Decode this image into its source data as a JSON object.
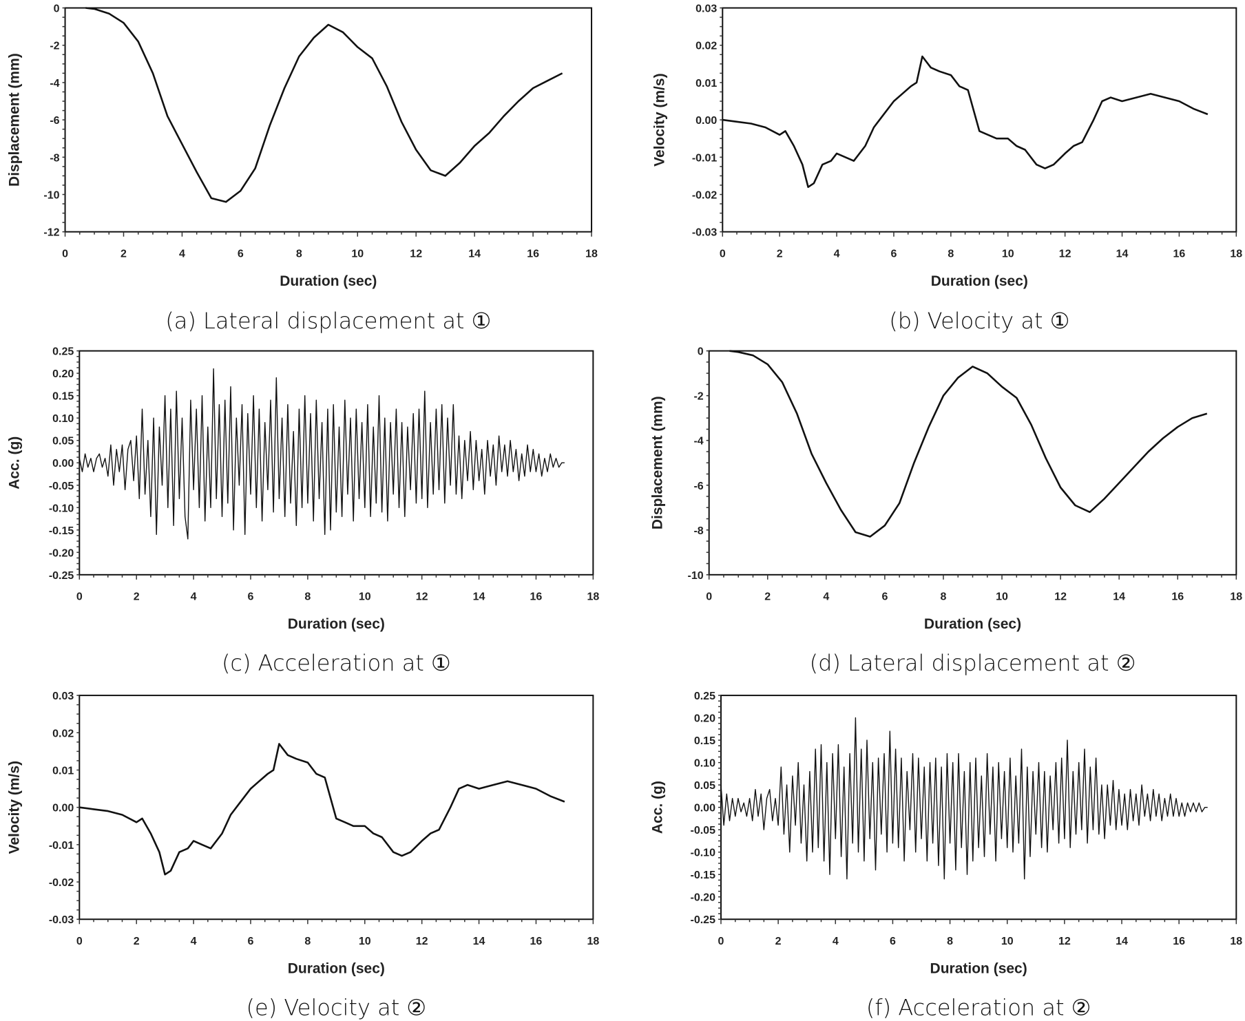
{
  "chart_data": [
    {
      "id": "a",
      "type": "line",
      "caption": "(a) Lateral displacement at ①",
      "xlabel": "Duration (sec)",
      "ylabel": "Displacement (mm)",
      "xlim": [
        0,
        18
      ],
      "ylim": [
        -12,
        0
      ],
      "xticks": [
        0,
        2,
        4,
        6,
        8,
        10,
        12,
        14,
        16,
        18
      ],
      "yticks": [
        0,
        -2,
        -4,
        -6,
        -8,
        -10,
        -12
      ],
      "ydecimals": 0,
      "grid": false,
      "legend": "none",
      "x": [
        0.7,
        1,
        1.5,
        2,
        2.5,
        3,
        3.5,
        4,
        4.5,
        5,
        5.5,
        6,
        6.5,
        7,
        7.5,
        8,
        8.5,
        9,
        9.5,
        10,
        10.5,
        11,
        11.5,
        12,
        12.5,
        13,
        13.5,
        14,
        14.5,
        15,
        15.5,
        16,
        16.5,
        17
      ],
      "y": [
        0,
        -0.05,
        -0.3,
        -0.8,
        -1.8,
        -3.5,
        -5.8,
        -7.3,
        -8.8,
        -10.2,
        -10.4,
        -9.8,
        -8.6,
        -6.3,
        -4.3,
        -2.6,
        -1.6,
        -0.9,
        -1.3,
        -2.1,
        -2.7,
        -4.2,
        -6.1,
        -7.6,
        -8.7,
        -9.0,
        -8.3,
        -7.4,
        -6.7,
        -5.8,
        -5.0,
        -4.3,
        -3.9,
        -3.5
      ]
    },
    {
      "id": "b",
      "type": "line",
      "caption": "(b) Velocity at ①",
      "xlabel": "Duration (sec)",
      "ylabel": "Velocity (m/s)",
      "xlim": [
        0,
        18
      ],
      "ylim": [
        -0.03,
        0.03
      ],
      "xticks": [
        0,
        2,
        4,
        6,
        8,
        10,
        12,
        14,
        16,
        18
      ],
      "yticks": [
        0.03,
        0.02,
        0.01,
        0.0,
        -0.01,
        -0.02,
        -0.03
      ],
      "ydecimals": 2,
      "grid": false,
      "legend": "none",
      "x": [
        0,
        0.5,
        1,
        1.5,
        2,
        2.2,
        2.5,
        2.8,
        3,
        3.2,
        3.5,
        3.8,
        4,
        4.3,
        4.6,
        5,
        5.3,
        5.6,
        6,
        6.3,
        6.6,
        6.8,
        7,
        7.3,
        7.6,
        8,
        8.3,
        8.6,
        9,
        9.3,
        9.6,
        10,
        10.3,
        10.6,
        11,
        11.3,
        11.6,
        12,
        12.3,
        12.6,
        13,
        13.3,
        13.6,
        14,
        14.5,
        15,
        15.5,
        16,
        16.5,
        17
      ],
      "y": [
        0,
        -0.0005,
        -0.001,
        -0.002,
        -0.004,
        -0.003,
        -0.007,
        -0.012,
        -0.018,
        -0.017,
        -0.012,
        -0.011,
        -0.009,
        -0.01,
        -0.011,
        -0.007,
        -0.002,
        0.001,
        0.005,
        0.007,
        0.009,
        0.01,
        0.017,
        0.014,
        0.013,
        0.012,
        0.009,
        0.008,
        -0.003,
        -0.004,
        -0.005,
        -0.005,
        -0.007,
        -0.008,
        -0.012,
        -0.013,
        -0.012,
        -0.009,
        -0.007,
        -0.006,
        0.0,
        0.005,
        0.006,
        0.005,
        0.006,
        0.007,
        0.006,
        0.005,
        0.003,
        0.0015
      ]
    },
    {
      "id": "c",
      "type": "line",
      "caption": "(c) Acceleration at ①",
      "xlabel": "Duration (sec)",
      "ylabel": "Acc. (g)",
      "xlim": [
        0,
        18
      ],
      "ylim": [
        -0.25,
        0.25
      ],
      "xticks": [
        0,
        2,
        4,
        6,
        8,
        10,
        12,
        14,
        16,
        18
      ],
      "yticks": [
        0.25,
        0.2,
        0.15,
        0.1,
        0.05,
        0.0,
        -0.05,
        -0.1,
        -0.15,
        -0.2,
        -0.25
      ],
      "ydecimals": 2,
      "grid": false,
      "legend": "none",
      "dx": 0.1,
      "y": [
        0.01,
        -0.02,
        0.02,
        -0.01,
        0.01,
        -0.02,
        0.01,
        0.02,
        -0.01,
        0.01,
        -0.03,
        0.04,
        -0.05,
        0.03,
        -0.02,
        0.04,
        -0.06,
        0.03,
        0.05,
        -0.04,
        0.06,
        -0.08,
        0.12,
        -0.07,
        0.05,
        -0.12,
        0.1,
        -0.16,
        0.08,
        -0.05,
        0.15,
        -0.1,
        0.12,
        -0.14,
        0.16,
        -0.08,
        0.1,
        -0.12,
        -0.17,
        0.14,
        -0.06,
        0.12,
        -0.1,
        0.15,
        -0.13,
        0.08,
        -0.1,
        0.21,
        -0.08,
        0.13,
        -0.12,
        0.14,
        -0.09,
        0.17,
        -0.15,
        0.1,
        -0.05,
        0.13,
        -0.16,
        0.11,
        -0.07,
        0.15,
        -0.1,
        0.12,
        -0.13,
        0.09,
        -0.06,
        0.14,
        -0.11,
        0.19,
        -0.08,
        0.1,
        -0.12,
        0.13,
        -0.09,
        0.07,
        -0.14,
        0.12,
        -0.1,
        0.15,
        -0.09,
        0.11,
        -0.13,
        0.14,
        -0.08,
        0.09,
        -0.16,
        0.12,
        -0.15,
        0.13,
        -0.11,
        0.08,
        -0.12,
        0.14,
        -0.07,
        0.1,
        -0.13,
        0.12,
        -0.08,
        0.09,
        -0.1,
        0.13,
        -0.12,
        0.08,
        -0.09,
        0.15,
        -0.11,
        0.1,
        -0.13,
        0.09,
        -0.07,
        0.12,
        -0.1,
        0.09,
        -0.12,
        0.08,
        -0.06,
        0.11,
        -0.09,
        0.12,
        -0.08,
        0.16,
        -0.1,
        0.09,
        -0.07,
        0.12,
        -0.06,
        0.13,
        -0.09,
        0.1,
        -0.05,
        0.13,
        -0.07,
        0.06,
        -0.08,
        0.05,
        -0.04,
        0.07,
        -0.06,
        0.05,
        -0.04,
        0.03,
        -0.07,
        0.05,
        -0.03,
        0.04,
        -0.05,
        0.06,
        -0.02,
        0.04,
        -0.03,
        0.05,
        -0.02,
        0.03,
        -0.04,
        0.02,
        -0.03,
        0.04,
        -0.02,
        0.03,
        -0.02,
        0.02,
        -0.03,
        0.01,
        -0.02,
        0.02,
        -0.01,
        0.01,
        -0.01,
        0.0,
        0.0
      ]
    },
    {
      "id": "d",
      "type": "line",
      "caption": "(d) Lateral displacement at ②",
      "xlabel": "Duration (sec)",
      "ylabel": "Displacement (mm)",
      "xlim": [
        0,
        18
      ],
      "ylim": [
        -10,
        0
      ],
      "xticks": [
        0,
        2,
        4,
        6,
        8,
        10,
        12,
        14,
        16,
        18
      ],
      "yticks": [
        0,
        -2,
        -4,
        -6,
        -8,
        -10
      ],
      "ydecimals": 0,
      "grid": false,
      "legend": "none",
      "x": [
        0.7,
        1,
        1.5,
        2,
        2.5,
        3,
        3.5,
        4,
        4.5,
        5,
        5.5,
        6,
        6.5,
        7,
        7.5,
        8,
        8.5,
        9,
        9.5,
        10,
        10.5,
        11,
        11.5,
        12,
        12.5,
        13,
        13.5,
        14,
        14.5,
        15,
        15.5,
        16,
        16.5,
        17
      ],
      "y": [
        0,
        -0.05,
        -0.2,
        -0.6,
        -1.4,
        -2.8,
        -4.6,
        -5.9,
        -7.1,
        -8.1,
        -8.3,
        -7.8,
        -6.8,
        -5.0,
        -3.4,
        -2.0,
        -1.2,
        -0.7,
        -1.0,
        -1.6,
        -2.1,
        -3.3,
        -4.8,
        -6.1,
        -6.9,
        -7.2,
        -6.6,
        -5.9,
        -5.2,
        -4.5,
        -3.9,
        -3.4,
        -3.0,
        -2.8
      ]
    },
    {
      "id": "e",
      "type": "line",
      "caption": "(e) Velocity at ②",
      "xlabel": "Duration (sec)",
      "ylabel": "Velocity (m/s)",
      "xlim": [
        0,
        18
      ],
      "ylim": [
        -0.03,
        0.03
      ],
      "xticks": [
        0,
        2,
        4,
        6,
        8,
        10,
        12,
        14,
        16,
        18
      ],
      "yticks": [
        0.03,
        0.02,
        0.01,
        0.0,
        -0.01,
        -0.02,
        -0.03
      ],
      "ydecimals": 2,
      "grid": false,
      "legend": "none",
      "x": [
        0,
        0.5,
        1,
        1.5,
        2,
        2.2,
        2.5,
        2.8,
        3,
        3.2,
        3.5,
        3.8,
        4,
        4.3,
        4.6,
        5,
        5.3,
        5.6,
        6,
        6.3,
        6.6,
        6.8,
        7,
        7.3,
        7.6,
        8,
        8.3,
        8.6,
        9,
        9.3,
        9.6,
        10,
        10.3,
        10.6,
        11,
        11.3,
        11.6,
        12,
        12.3,
        12.6,
        13,
        13.3,
        13.6,
        14,
        14.5,
        15,
        15.5,
        16,
        16.5,
        17
      ],
      "y": [
        0,
        -0.0005,
        -0.001,
        -0.002,
        -0.004,
        -0.003,
        -0.007,
        -0.012,
        -0.018,
        -0.017,
        -0.012,
        -0.011,
        -0.009,
        -0.01,
        -0.011,
        -0.007,
        -0.002,
        0.001,
        0.005,
        0.007,
        0.009,
        0.01,
        0.017,
        0.014,
        0.013,
        0.012,
        0.009,
        0.008,
        -0.003,
        -0.004,
        -0.005,
        -0.005,
        -0.007,
        -0.008,
        -0.012,
        -0.013,
        -0.012,
        -0.009,
        -0.007,
        -0.006,
        0.0,
        0.005,
        0.006,
        0.005,
        0.006,
        0.007,
        0.006,
        0.005,
        0.003,
        0.0015
      ]
    },
    {
      "id": "f",
      "type": "line",
      "caption": "(f) Acceleration at ②",
      "xlabel": "Duration (sec)",
      "ylabel": "Acc. (g)",
      "xlim": [
        0,
        18
      ],
      "ylim": [
        -0.25,
        0.25
      ],
      "xticks": [
        0,
        2,
        4,
        6,
        8,
        10,
        12,
        14,
        16,
        18
      ],
      "yticks": [
        0.25,
        0.2,
        0.15,
        0.1,
        0.05,
        0.0,
        -0.05,
        -0.1,
        -0.15,
        -0.2,
        -0.25
      ],
      "ydecimals": 2,
      "grid": false,
      "legend": "none",
      "dx": 0.1,
      "y": [
        0.05,
        -0.04,
        0.03,
        -0.03,
        0.02,
        -0.02,
        0.02,
        -0.01,
        0.01,
        -0.02,
        0.02,
        -0.03,
        0.04,
        -0.02,
        0.03,
        -0.05,
        0.02,
        0.04,
        -0.03,
        0.02,
        -0.04,
        0.09,
        -0.06,
        0.05,
        -0.1,
        0.07,
        -0.04,
        0.1,
        -0.08,
        0.05,
        -0.12,
        0.08,
        -0.1,
        0.13,
        -0.09,
        0.14,
        -0.12,
        0.1,
        -0.15,
        0.12,
        -0.07,
        0.14,
        -0.11,
        0.09,
        -0.16,
        0.12,
        -0.08,
        0.2,
        -0.1,
        0.13,
        -0.12,
        0.15,
        -0.07,
        0.1,
        -0.14,
        0.11,
        -0.06,
        0.12,
        -0.1,
        0.17,
        -0.08,
        0.13,
        -0.09,
        0.11,
        -0.12,
        0.08,
        -0.05,
        0.12,
        -0.1,
        0.11,
        -0.07,
        0.09,
        -0.12,
        0.1,
        -0.08,
        0.11,
        -0.13,
        0.09,
        -0.16,
        0.12,
        -0.08,
        0.1,
        -0.14,
        0.12,
        -0.09,
        0.08,
        -0.15,
        0.1,
        -0.12,
        0.11,
        -0.09,
        0.07,
        -0.11,
        0.12,
        -0.06,
        0.09,
        -0.12,
        0.1,
        -0.07,
        0.08,
        -0.09,
        0.11,
        -0.1,
        0.07,
        -0.08,
        0.13,
        -0.16,
        0.09,
        -0.11,
        0.08,
        -0.06,
        0.1,
        -0.09,
        0.08,
        -0.1,
        0.07,
        -0.05,
        0.1,
        -0.08,
        0.11,
        -0.07,
        0.15,
        -0.09,
        0.08,
        -0.06,
        0.1,
        -0.05,
        0.13,
        -0.08,
        0.09,
        -0.05,
        0.11,
        -0.06,
        0.05,
        -0.07,
        0.05,
        -0.04,
        0.06,
        -0.05,
        0.04,
        -0.04,
        0.03,
        -0.05,
        0.04,
        -0.03,
        0.03,
        -0.04,
        0.05,
        -0.02,
        0.03,
        -0.03,
        0.04,
        -0.02,
        0.03,
        -0.03,
        0.02,
        -0.02,
        0.03,
        -0.02,
        0.02,
        -0.02,
        0.01,
        -0.02,
        0.01,
        -0.01,
        0.01,
        -0.01,
        0.01,
        -0.01,
        0.0,
        0.0
      ]
    }
  ]
}
